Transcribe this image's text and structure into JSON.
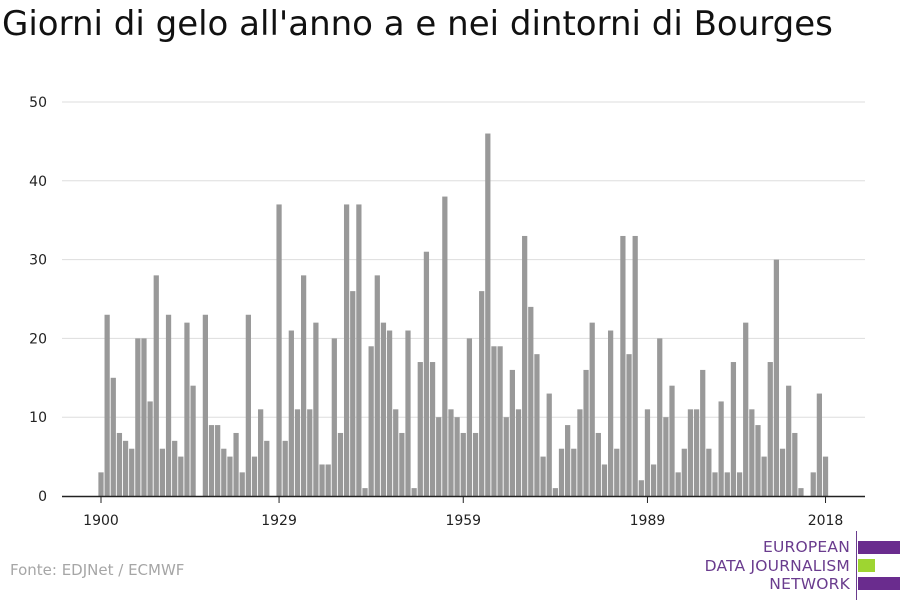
{
  "title": "Giorni di gelo all'anno a e nei dintorni di Bourges",
  "source": "Fonte: EDJNet / ECMWF",
  "logo": {
    "line1": "EUROPEAN",
    "line2": "DATA JOURNALISM",
    "line3": "NETWORK"
  },
  "colors": {
    "bar": "#999999",
    "grid": "#dddddd",
    "axis": "#222222",
    "logo_purple": "#6a2c8e",
    "logo_green": "#9ed531"
  },
  "chart_data": {
    "type": "bar",
    "title": "Giorni di gelo all'anno a e nei dintorni di Bourges",
    "xlabel": "",
    "ylabel": "",
    "ylim": [
      0,
      50
    ],
    "yticks": [
      0,
      10,
      20,
      30,
      40,
      50
    ],
    "xticks": [
      1900,
      1929,
      1959,
      1989,
      2018
    ],
    "grid": true,
    "x": [
      1900,
      1901,
      1902,
      1903,
      1904,
      1905,
      1906,
      1907,
      1908,
      1909,
      1910,
      1911,
      1912,
      1913,
      1914,
      1915,
      1916,
      1917,
      1918,
      1919,
      1920,
      1921,
      1922,
      1923,
      1924,
      1925,
      1926,
      1927,
      1928,
      1929,
      1930,
      1931,
      1932,
      1933,
      1934,
      1935,
      1936,
      1937,
      1938,
      1939,
      1940,
      1941,
      1942,
      1943,
      1944,
      1945,
      1946,
      1947,
      1948,
      1949,
      1950,
      1951,
      1952,
      1953,
      1954,
      1955,
      1956,
      1957,
      1958,
      1959,
      1960,
      1961,
      1962,
      1963,
      1964,
      1965,
      1966,
      1967,
      1968,
      1969,
      1970,
      1971,
      1972,
      1973,
      1974,
      1975,
      1976,
      1977,
      1978,
      1979,
      1980,
      1981,
      1982,
      1983,
      1984,
      1985,
      1986,
      1987,
      1988,
      1989,
      1990,
      1991,
      1992,
      1993,
      1994,
      1995,
      1996,
      1997,
      1998,
      1999,
      2000,
      2001,
      2002,
      2003,
      2004,
      2005,
      2006,
      2007,
      2008,
      2009,
      2010,
      2011,
      2012,
      2013,
      2014,
      2015,
      2016,
      2017,
      2018
    ],
    "values": [
      3,
      23,
      15,
      8,
      7,
      6,
      20,
      20,
      12,
      28,
      6,
      23,
      7,
      5,
      22,
      14,
      0,
      23,
      9,
      9,
      6,
      5,
      8,
      3,
      23,
      5,
      11,
      7,
      0,
      37,
      7,
      21,
      11,
      28,
      11,
      22,
      4,
      4,
      20,
      8,
      37,
      26,
      37,
      1,
      19,
      28,
      22,
      21,
      11,
      8,
      21,
      1,
      17,
      31,
      17,
      10,
      38,
      11,
      10,
      8,
      20,
      8,
      26,
      46,
      19,
      19,
      10,
      16,
      11,
      33,
      24,
      18,
      5,
      13,
      1,
      6,
      9,
      6,
      11,
      16,
      22,
      8,
      4,
      21,
      6,
      33,
      18,
      33,
      2,
      11,
      4,
      20,
      10,
      14,
      3,
      6,
      11,
      11,
      16,
      6,
      3,
      12,
      3,
      17,
      3,
      22,
      11,
      9,
      5,
      17,
      30,
      6,
      14,
      8,
      1,
      0,
      3,
      13,
      5
    ]
  }
}
